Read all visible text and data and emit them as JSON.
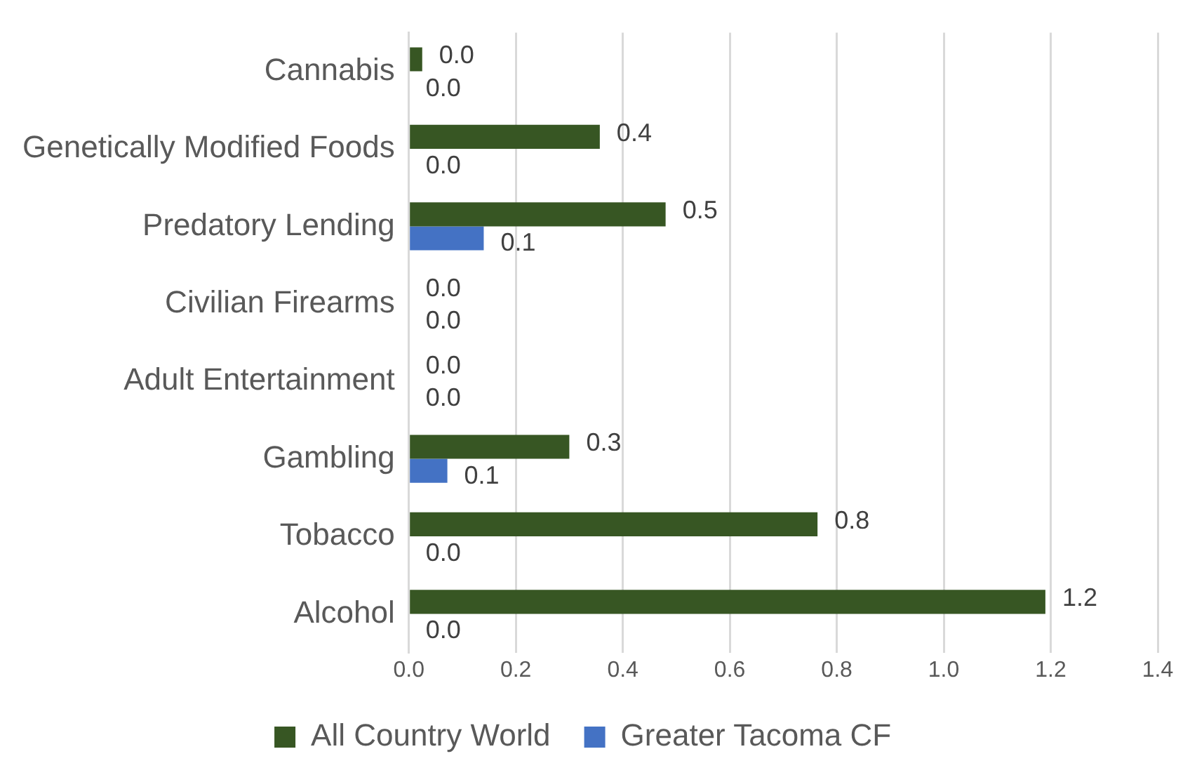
{
  "chart_data": {
    "type": "bar",
    "orientation": "horizontal",
    "categories": [
      "Cannabis",
      "Genetically Modified Foods",
      "Predatory Lending",
      "Civilian Firearms",
      "Adult Entertainment",
      "Gambling",
      "Tobacco",
      "Alcohol"
    ],
    "series": [
      {
        "name": "All Country World",
        "color": "#375623",
        "values": [
          0.025,
          0.357,
          0.48,
          0,
          0,
          0.3,
          0.764,
          1.19
        ],
        "value_labels": [
          "0.0",
          "0.4",
          "0.5",
          "0.0",
          "0.0",
          "0.3",
          "0.8",
          "1.2"
        ]
      },
      {
        "name": "Greater Tacoma CF",
        "color": "#4472c4",
        "values": [
          0,
          0,
          0.14,
          0,
          0,
          0.072,
          0,
          0
        ],
        "value_labels": [
          "0.0",
          "0.0",
          "0.1",
          "0.0",
          "0.0",
          "0.1",
          "0.0",
          "0.0"
        ]
      }
    ],
    "xlim": [
      0,
      1.4
    ],
    "xticks": [
      {
        "value": 0,
        "label": "0.0"
      },
      {
        "value": 0.2,
        "label": "0.2"
      },
      {
        "value": 0.4,
        "label": "0.4"
      },
      {
        "value": 0.6,
        "label": "0.6"
      },
      {
        "value": 0.8,
        "label": "0.8"
      },
      {
        "value": 1,
        "label": "1.0"
      },
      {
        "value": 1.2,
        "label": "1.2"
      },
      {
        "value": 1.4,
        "label": "1.4"
      }
    ],
    "grid": "x",
    "legend": "bottom"
  }
}
